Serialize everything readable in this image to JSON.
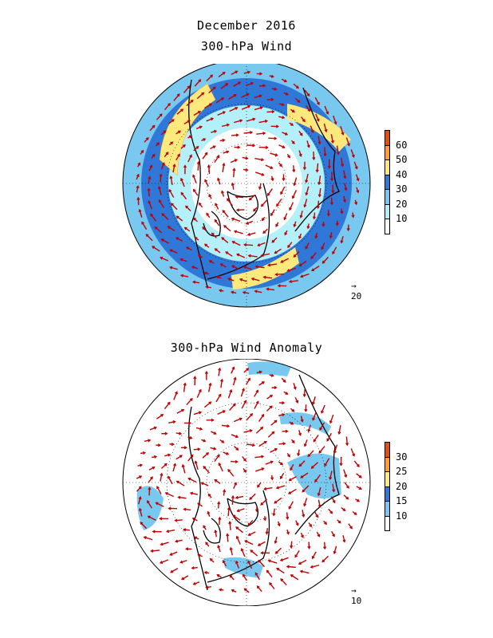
{
  "header": {
    "month": "December 2016",
    "panel1_title": "300-hPa Wind",
    "panel2_title": "300-hPa Wind Anomaly"
  },
  "panel1": {
    "colorbar": {
      "levels": [
        "10",
        "20",
        "30",
        "40",
        "50",
        "60"
      ],
      "colors": [
        "#ffffff",
        "#b4f0fa",
        "#78c8f0",
        "#2f78d8",
        "#ffe87c",
        "#ffa028",
        "#e1500f"
      ]
    },
    "reference_vector": "20"
  },
  "panel2": {
    "colorbar": {
      "levels": [
        "10",
        "15",
        "20",
        "25",
        "30"
      ],
      "colors": [
        "#ffffff",
        "#78c8f0",
        "#2f78d8",
        "#ffe87c",
        "#ffa028",
        "#e1500f"
      ]
    },
    "reference_vector": "10"
  },
  "style": {
    "arrow_color": "#c00000"
  }
}
